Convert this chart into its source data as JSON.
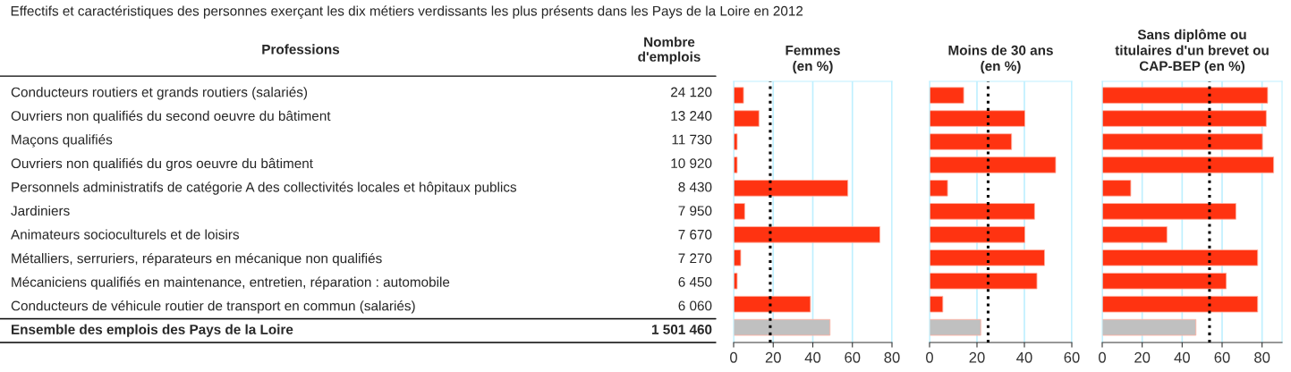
{
  "chart_data": [
    {
      "type": "other",
      "title": "Effectifs et caractéristiques des personnes exerçant les dix métiers verdissants les plus présents dans les Pays de la Loire en 2012",
      "ylabel": "Professions",
      "xlabel": "Nombre\nd'emplois",
      "categories": [
        "Conducteurs routiers et grands routiers (salariés)",
        "Ouvriers non qualifiés du second oeuvre du bâtiment",
        "Maçons qualifiés",
        "Ouvriers non qualifiés du gros oeuvre du bâtiment",
        "Personnels administratifs de catégorie A des collectivités locales et hôpitaux publics",
        "Jardiniers",
        "Animateurs socioculturels et de loisirs",
        "Métalliers, serruriers, réparateurs en mécanique non qualifiés",
        "Mécaniciens qualifiés en maintenance, entretien, réparation : automobile",
        "Conducteurs de véhicule routier de transport en commun (salariés)",
        "Ensemble des emplois des Pays de la Loire"
      ],
      "values": [
        24120,
        13240,
        11730,
        10920,
        8430,
        7950,
        7670,
        7270,
        6450,
        6060,
        1501460
      ],
      "value_labels": [
        "24 120",
        "13 240",
        "11 730",
        "10 920",
        "8 430",
        "7 950",
        "7 670",
        "7 270",
        "6 450",
        "6 060",
        "1 501 460"
      ]
    },
    {
      "type": "bar",
      "orientation": "horizontal",
      "title": "Femmes\n(en %)",
      "tick_labels": "x",
      "grid": "x",
      "values": [
        5,
        12.8,
        1.8,
        1.8,
        57.7,
        5.6,
        73.9,
        3.6,
        1.8,
        38.8,
        48.7
      ],
      "colors": [
        "#ff3311",
        "#ff3311",
        "#ff3311",
        "#ff3311",
        "#ff3311",
        "#ff3311",
        "#ff3311",
        "#ff3311",
        "#ff3311",
        "#ff3311",
        "#c0c0c0"
      ],
      "xlim": [
        0,
        80
      ],
      "xticks": [
        0,
        20,
        40,
        60,
        80
      ],
      "ref_lines": [
        {
          "axis": "x",
          "value": 18.5,
          "color": "#000000",
          "line_style": "dotted"
        }
      ]
    },
    {
      "type": "bar",
      "orientation": "horizontal",
      "title": "Moins de 30 ans\n(en %)",
      "tick_labels": "x",
      "grid": "x",
      "values": [
        14.4,
        40.2,
        34.6,
        53.2,
        7.6,
        44.3,
        40.2,
        48.5,
        45.3,
        5.6,
        21.6
      ],
      "colors": [
        "#ff3311",
        "#ff3311",
        "#ff3311",
        "#ff3311",
        "#ff3311",
        "#ff3311",
        "#ff3311",
        "#ff3311",
        "#ff3311",
        "#ff3311",
        "#c0c0c0"
      ],
      "xlim": [
        0,
        60
      ],
      "xticks": [
        0,
        20,
        40,
        60
      ],
      "ref_lines": [
        {
          "axis": "x",
          "value": 24.7,
          "color": "#000000",
          "line_style": "dotted"
        }
      ]
    },
    {
      "type": "bar",
      "orientation": "horizontal",
      "title": "Sans diplôme ou\ntitulaires d'un brevet ou\nCAP-BEP (en %)",
      "tick_labels": "x",
      "grid": "x",
      "values": [
        82.8,
        82.1,
        80.2,
        85.8,
        14.3,
        66.9,
        32.4,
        77.8,
        62.1,
        77.8,
        46.9
      ],
      "colors": [
        "#ff3311",
        "#ff3311",
        "#ff3311",
        "#ff3311",
        "#ff3311",
        "#ff3311",
        "#ff3311",
        "#ff3311",
        "#ff3311",
        "#ff3311",
        "#c0c0c0"
      ],
      "xlim": [
        0,
        90
      ],
      "xticks": [
        0,
        20,
        40,
        60,
        80
      ],
      "ref_lines": [
        {
          "axis": "x",
          "value": 53.7,
          "color": "#000000",
          "line_style": "dotted"
        }
      ]
    }
  ]
}
